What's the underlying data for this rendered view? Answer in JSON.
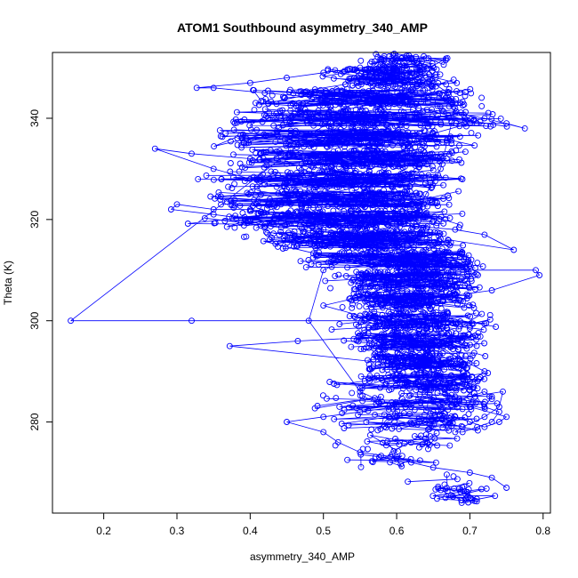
{
  "chart_data": {
    "type": "scatter",
    "style": "points connected by lines",
    "title": "ATOM1 Southbound asymmetry_340_AMP",
    "xlabel": "asymmetry_340_AMP",
    "ylabel": "Theta (K)",
    "xlim": [
      0.13,
      0.81
    ],
    "ylim": [
      262,
      353
    ],
    "xticks": [
      0.2,
      0.3,
      0.4,
      0.5,
      0.6,
      0.7,
      0.8
    ],
    "yticks": [
      280,
      300,
      320,
      340
    ],
    "grid": false,
    "legend": "none",
    "marker": "open-circle",
    "color": "#0000ff",
    "series": [
      {
        "x": [
          0.155,
          0.32,
          0.58,
          0.6,
          0.63,
          0.6,
          0.62,
          0.65,
          0.69,
          0.372,
          0.465,
          0.6,
          0.58,
          0.62,
          0.63,
          0.64,
          0.67,
          0.7,
          0.72,
          0.68,
          0.6,
          0.55,
          0.5,
          0.56,
          0.59,
          0.62,
          0.6,
          0.79,
          0.795,
          0.73,
          0.68,
          0.63,
          0.6,
          0.55,
          0.58,
          0.61,
          0.64,
          0.67,
          0.76,
          0.72,
          0.68,
          0.6,
          0.5,
          0.45,
          0.4,
          0.35,
          0.3,
          0.292,
          0.35,
          0.4,
          0.45,
          0.5,
          0.55,
          0.58,
          0.6,
          0.57,
          0.5,
          0.45,
          0.4,
          0.35,
          0.27,
          0.32,
          0.4,
          0.45,
          0.5,
          0.55,
          0.58,
          0.6,
          0.62,
          0.65,
          0.7,
          0.75,
          0.775,
          0.72,
          0.68,
          0.63,
          0.58,
          0.5,
          0.42,
          0.35,
          0.327,
          0.4,
          0.45,
          0.5,
          0.55,
          0.58,
          0.6,
          0.62,
          0.65,
          0.67,
          0.68,
          0.67,
          0.66,
          0.64,
          0.62,
          0.5,
          0.48,
          0.55,
          0.58,
          0.62,
          0.65,
          0.68,
          0.7,
          0.72,
          0.74,
          0.75,
          0.7,
          0.68,
          0.7,
          0.72,
          0.73,
          0.72,
          0.74,
          0.73,
          0.71,
          0.69,
          0.68,
          0.69,
          0.72,
          0.74,
          0.745,
          0.7,
          0.65,
          0.6,
          0.55,
          0.5,
          0.45,
          0.5,
          0.52,
          0.55,
          0.6,
          0.62,
          0.65,
          0.7,
          0.73,
          0.75
        ],
        "y": [
          300,
          300,
          300,
          299,
          298,
          296,
          294,
          292,
          290,
          295,
          296,
          297,
          295,
          293,
          291,
          289,
          287,
          288,
          290,
          293,
          298,
          301,
          303,
          305,
          307,
          308,
          310,
          310,
          309,
          306,
          305,
          304,
          303,
          305,
          308,
          311,
          314,
          316,
          314,
          317,
          318,
          319,
          320,
          321,
          322,
          322,
          323,
          322,
          321,
          320,
          319,
          318,
          317,
          316,
          318,
          321,
          324,
          326,
          328,
          330,
          334,
          333,
          332,
          331,
          330,
          329,
          331,
          333,
          335,
          337,
          339,
          339,
          338,
          340,
          341,
          342,
          343,
          344,
          345,
          346,
          346,
          347,
          348,
          349,
          350,
          350,
          349,
          348,
          347,
          345,
          342,
          336,
          330,
          325,
          318,
          310,
          300,
          286,
          284,
          283,
          282,
          281,
          280,
          279,
          280,
          281,
          283,
          284,
          285,
          286,
          285,
          283,
          282,
          280,
          279,
          278,
          278,
          279,
          281,
          283,
          286,
          285,
          284,
          283,
          282,
          281,
          280,
          278,
          276,
          274,
          273,
          272,
          271,
          270,
          269,
          267
        ],
        "cloud": {
          "y_bands": [
            265.5,
            268,
            272,
            276,
            280,
            284,
            288,
            292,
            296,
            300,
            304,
            308,
            312,
            316,
            320,
            324,
            328,
            332,
            336,
            340,
            344,
            348,
            351
          ],
          "x_min": [
            0.62,
            0.6,
            0.52,
            0.5,
            0.48,
            0.46,
            0.5,
            0.55,
            0.52,
            0.5,
            0.52,
            0.5,
            0.45,
            0.38,
            0.3,
            0.33,
            0.32,
            0.35,
            0.33,
            0.36,
            0.38,
            0.48,
            0.55
          ],
          "x_max": [
            0.75,
            0.74,
            0.66,
            0.7,
            0.73,
            0.75,
            0.74,
            0.73,
            0.74,
            0.74,
            0.72,
            0.73,
            0.72,
            0.7,
            0.7,
            0.69,
            0.7,
            0.72,
            0.74,
            0.77,
            0.74,
            0.7,
            0.68
          ],
          "x_peak": [
            0.68,
            0.68,
            0.6,
            0.65,
            0.67,
            0.67,
            0.65,
            0.62,
            0.62,
            0.62,
            0.62,
            0.63,
            0.64,
            0.6,
            0.57,
            0.57,
            0.56,
            0.57,
            0.56,
            0.56,
            0.57,
            0.59,
            0.6
          ],
          "density": [
            26,
            12,
            18,
            30,
            70,
            80,
            120,
            160,
            150,
            160,
            170,
            200,
            220,
            240,
            230,
            210,
            190,
            200,
            190,
            200,
            180,
            150,
            70
          ]
        }
      }
    ]
  }
}
